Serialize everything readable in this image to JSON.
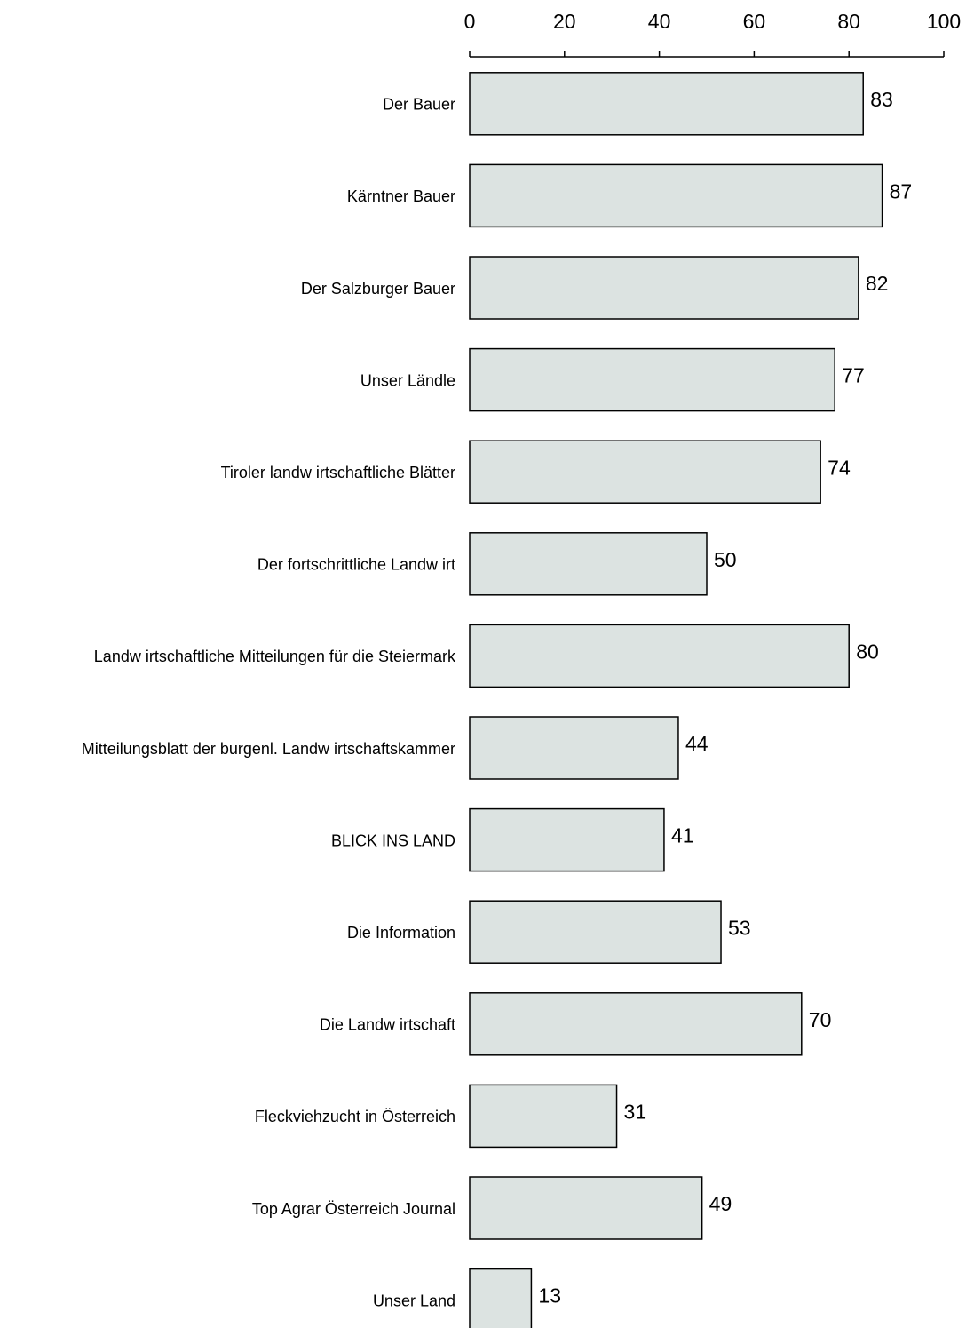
{
  "chart_data": {
    "type": "bar",
    "orientation": "horizontal",
    "categories": [
      "Der Bauer",
      "Kärntner Bauer",
      "Der Salzburger Bauer",
      "Unser Ländle",
      "Tiroler landw irtschaftliche Blätter",
      "Der fortschrittliche Landw irt",
      "Landw irtschaftliche Mitteilungen für die Steiermark",
      "Mitteilungsblatt der burgenl. Landw irtschaftskammer",
      "BLICK INS LAND",
      "Die Information",
      "Die Landw irtschaft",
      "Fleckviehzucht in Österreich",
      "Top Agrar Österreich Journal",
      "Unser Land"
    ],
    "values": [
      83,
      87,
      82,
      77,
      74,
      50,
      80,
      44,
      41,
      53,
      70,
      31,
      49,
      13
    ],
    "color": "#dce3e1",
    "xlim": [
      0,
      100
    ],
    "xticks": [
      0,
      20,
      40,
      60,
      80,
      100
    ],
    "grid": false
  }
}
